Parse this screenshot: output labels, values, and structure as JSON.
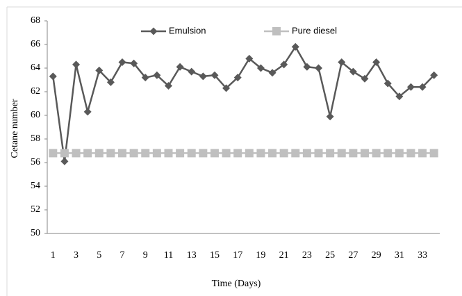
{
  "chart_data": {
    "type": "line",
    "x_label": "Time (Days)",
    "y_label": "Cetane number",
    "categories": [
      1,
      null,
      3,
      null,
      5,
      null,
      7,
      null,
      9,
      null,
      11,
      null,
      13,
      null,
      15,
      null,
      17,
      null,
      19,
      null,
      21,
      null,
      23,
      null,
      25,
      null,
      27,
      null,
      29,
      null,
      31,
      null,
      33,
      null
    ],
    "series": [
      {
        "name": "Emulsion",
        "color": "#595959",
        "marker": "diamond",
        "values": [
          63.3,
          56.1,
          64.3,
          60.3,
          63.8,
          62.8,
          64.5,
          64.4,
          63.2,
          63.4,
          62.5,
          64.1,
          63.7,
          63.3,
          63.4,
          62.3,
          63.2,
          64.8,
          64.0,
          63.6,
          64.3,
          65.8,
          64.1,
          64.0,
          59.9,
          64.5,
          63.7,
          63.1,
          64.5,
          62.7,
          61.6,
          62.4,
          62.4,
          63.4
        ]
      },
      {
        "name": "Pure diesel",
        "color": "#bfbfbf",
        "marker": "square",
        "values": [
          56.8,
          56.8,
          56.8,
          56.8,
          56.8,
          56.8,
          56.8,
          56.8,
          56.8,
          56.8,
          56.8,
          56.8,
          56.8,
          56.8,
          56.8,
          56.8,
          56.8,
          56.8,
          56.8,
          56.8,
          56.8,
          56.8,
          56.8,
          56.8,
          56.8,
          56.8,
          56.8,
          56.8,
          56.8,
          56.8,
          56.8,
          56.8,
          56.8,
          56.8
        ]
      }
    ],
    "ylim": [
      50,
      68
    ],
    "yticks": [
      50,
      52,
      54,
      56,
      58,
      60,
      62,
      64,
      66,
      68
    ],
    "grid": false,
    "legend": "top"
  }
}
